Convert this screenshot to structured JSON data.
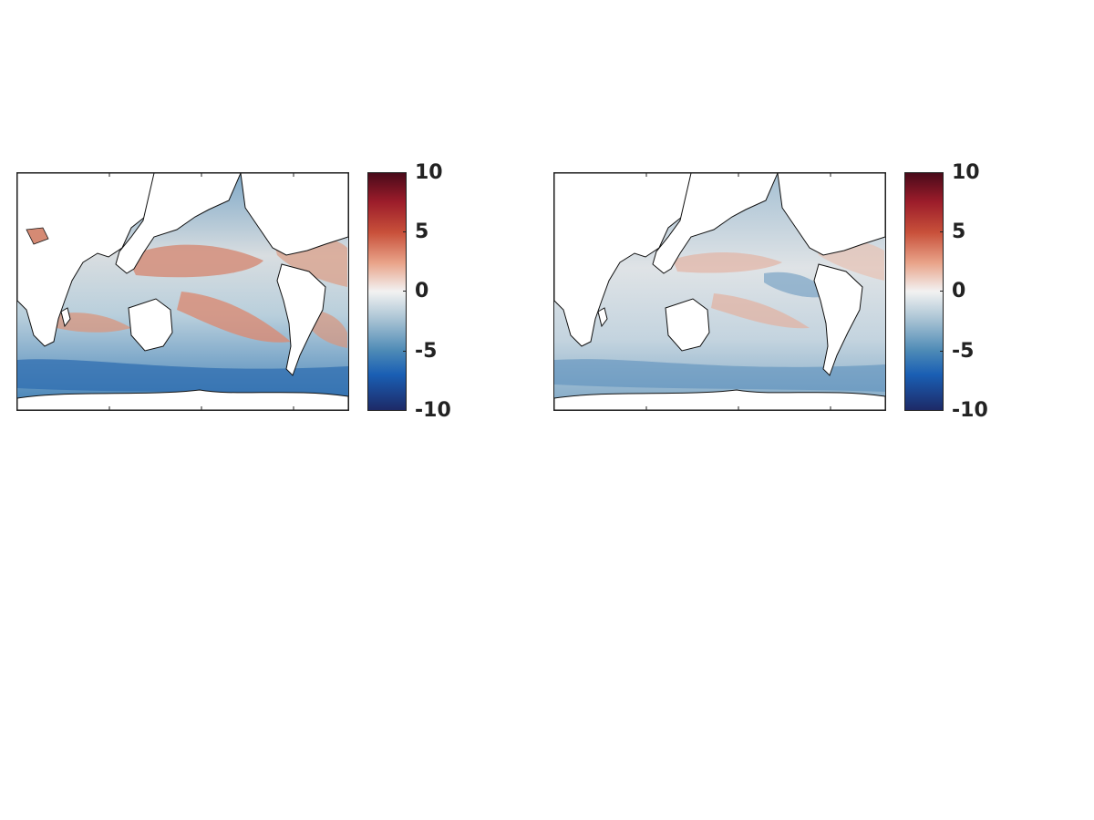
{
  "panels": [
    {
      "map": "global-ocean-anomaly-map",
      "pattern": "strong"
    },
    {
      "map": "global-ocean-anomaly-map",
      "pattern": "weak"
    }
  ],
  "colorbar": {
    "ticks": [
      "10",
      "5",
      "0",
      "-5",
      "-10"
    ],
    "range": [
      -10,
      10
    ],
    "colormap": "blue-white-red diverging",
    "colors": {
      "max": "#4a0a1a",
      "mid": "#f2f2f2",
      "min": "#1d2a67"
    }
  },
  "map_colors": {
    "land": "#ffffff",
    "coastline": "#111111"
  }
}
